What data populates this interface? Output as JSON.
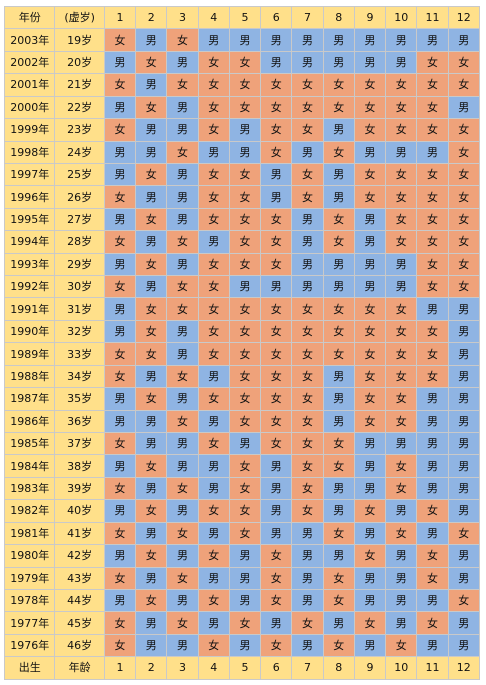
{
  "header": {
    "year_label": "年份",
    "age_label": "(虚岁)",
    "months": [
      "1",
      "2",
      "3",
      "4",
      "5",
      "6",
      "7",
      "8",
      "9",
      "10",
      "11",
      "12"
    ]
  },
  "footer": {
    "birth_label": "出生",
    "age_label": "年龄",
    "months": [
      "1",
      "2",
      "3",
      "4",
      "5",
      "6",
      "7",
      "8",
      "9",
      "10",
      "11",
      "12"
    ]
  },
  "colors": {
    "male": "#8fb4e3",
    "female": "#efa27a",
    "label": "#ffe08a"
  },
  "rows": [
    {
      "year": "2003年",
      "age": "19岁",
      "cells": [
        "女",
        "男",
        "女",
        "男",
        "男",
        "男",
        "男",
        "男",
        "男",
        "男",
        "男",
        "男"
      ]
    },
    {
      "year": "2002年",
      "age": "20岁",
      "cells": [
        "男",
        "女",
        "男",
        "女",
        "女",
        "男",
        "男",
        "男",
        "男",
        "男",
        "女",
        "女"
      ]
    },
    {
      "year": "2001年",
      "age": "21岁",
      "cells": [
        "女",
        "男",
        "女",
        "女",
        "女",
        "女",
        "女",
        "女",
        "女",
        "女",
        "女",
        "女"
      ]
    },
    {
      "year": "2000年",
      "age": "22岁",
      "cells": [
        "男",
        "女",
        "男",
        "女",
        "女",
        "女",
        "女",
        "女",
        "女",
        "女",
        "女",
        "男"
      ]
    },
    {
      "year": "1999年",
      "age": "23岁",
      "cells": [
        "女",
        "男",
        "男",
        "女",
        "男",
        "女",
        "女",
        "男",
        "女",
        "女",
        "女",
        "女"
      ]
    },
    {
      "year": "1998年",
      "age": "24岁",
      "cells": [
        "男",
        "男",
        "女",
        "男",
        "男",
        "女",
        "男",
        "女",
        "男",
        "男",
        "男",
        "女"
      ]
    },
    {
      "year": "1997年",
      "age": "25岁",
      "cells": [
        "男",
        "女",
        "男",
        "女",
        "女",
        "男",
        "女",
        "男",
        "女",
        "女",
        "女",
        "女"
      ]
    },
    {
      "year": "1996年",
      "age": "26岁",
      "cells": [
        "女",
        "男",
        "男",
        "女",
        "女",
        "男",
        "女",
        "男",
        "女",
        "女",
        "女",
        "女"
      ]
    },
    {
      "year": "1995年",
      "age": "27岁",
      "cells": [
        "男",
        "女",
        "男",
        "女",
        "女",
        "女",
        "男",
        "女",
        "男",
        "女",
        "女",
        "女"
      ]
    },
    {
      "year": "1994年",
      "age": "28岁",
      "cells": [
        "女",
        "男",
        "女",
        "男",
        "女",
        "女",
        "男",
        "女",
        "男",
        "女",
        "女",
        "女"
      ]
    },
    {
      "year": "1993年",
      "age": "29岁",
      "cells": [
        "男",
        "女",
        "男",
        "女",
        "女",
        "女",
        "男",
        "男",
        "男",
        "男",
        "女",
        "女"
      ]
    },
    {
      "year": "1992年",
      "age": "30岁",
      "cells": [
        "女",
        "男",
        "女",
        "女",
        "男",
        "男",
        "男",
        "男",
        "男",
        "男",
        "女",
        "女"
      ]
    },
    {
      "year": "1991年",
      "age": "31岁",
      "cells": [
        "男",
        "女",
        "女",
        "女",
        "女",
        "女",
        "女",
        "女",
        "女",
        "女",
        "男",
        "男"
      ]
    },
    {
      "year": "1990年",
      "age": "32岁",
      "cells": [
        "男",
        "女",
        "男",
        "女",
        "女",
        "女",
        "女",
        "女",
        "女",
        "女",
        "女",
        "男"
      ]
    },
    {
      "year": "1989年",
      "age": "33岁",
      "cells": [
        "女",
        "女",
        "男",
        "女",
        "女",
        "女",
        "女",
        "女",
        "女",
        "女",
        "女",
        "男"
      ]
    },
    {
      "year": "1988年",
      "age": "34岁",
      "cells": [
        "女",
        "男",
        "女",
        "男",
        "女",
        "女",
        "女",
        "男",
        "女",
        "女",
        "女",
        "男"
      ]
    },
    {
      "year": "1987年",
      "age": "35岁",
      "cells": [
        "男",
        "女",
        "男",
        "女",
        "女",
        "女",
        "女",
        "男",
        "女",
        "女",
        "男",
        "男"
      ]
    },
    {
      "year": "1986年",
      "age": "36岁",
      "cells": [
        "男",
        "男",
        "女",
        "男",
        "女",
        "女",
        "女",
        "男",
        "女",
        "女",
        "男",
        "男"
      ]
    },
    {
      "year": "1985年",
      "age": "37岁",
      "cells": [
        "女",
        "男",
        "男",
        "女",
        "男",
        "女",
        "女",
        "女",
        "男",
        "男",
        "男",
        "男"
      ]
    },
    {
      "year": "1984年",
      "age": "38岁",
      "cells": [
        "男",
        "女",
        "男",
        "男",
        "女",
        "男",
        "女",
        "女",
        "男",
        "女",
        "男",
        "男"
      ]
    },
    {
      "year": "1983年",
      "age": "39岁",
      "cells": [
        "女",
        "男",
        "女",
        "男",
        "女",
        "男",
        "女",
        "男",
        "男",
        "女",
        "男",
        "男"
      ]
    },
    {
      "year": "1982年",
      "age": "40岁",
      "cells": [
        "男",
        "女",
        "男",
        "女",
        "女",
        "男",
        "女",
        "男",
        "女",
        "男",
        "女",
        "男"
      ]
    },
    {
      "year": "1981年",
      "age": "41岁",
      "cells": [
        "女",
        "男",
        "女",
        "男",
        "女",
        "男",
        "男",
        "女",
        "男",
        "女",
        "男",
        "女"
      ]
    },
    {
      "year": "1980年",
      "age": "42岁",
      "cells": [
        "男",
        "女",
        "男",
        "女",
        "男",
        "女",
        "男",
        "男",
        "女",
        "男",
        "女",
        "男"
      ]
    },
    {
      "year": "1979年",
      "age": "43岁",
      "cells": [
        "女",
        "男",
        "女",
        "男",
        "男",
        "女",
        "男",
        "女",
        "男",
        "男",
        "女",
        "男"
      ]
    },
    {
      "year": "1978年",
      "age": "44岁",
      "cells": [
        "男",
        "女",
        "男",
        "女",
        "男",
        "女",
        "男",
        "女",
        "男",
        "男",
        "男",
        "女"
      ]
    },
    {
      "year": "1977年",
      "age": "45岁",
      "cells": [
        "女",
        "男",
        "女",
        "男",
        "女",
        "男",
        "女",
        "男",
        "女",
        "男",
        "女",
        "男"
      ]
    },
    {
      "year": "1976年",
      "age": "46岁",
      "cells": [
        "女",
        "男",
        "男",
        "女",
        "男",
        "女",
        "男",
        "女",
        "男",
        "女",
        "男",
        "男"
      ]
    }
  ]
}
